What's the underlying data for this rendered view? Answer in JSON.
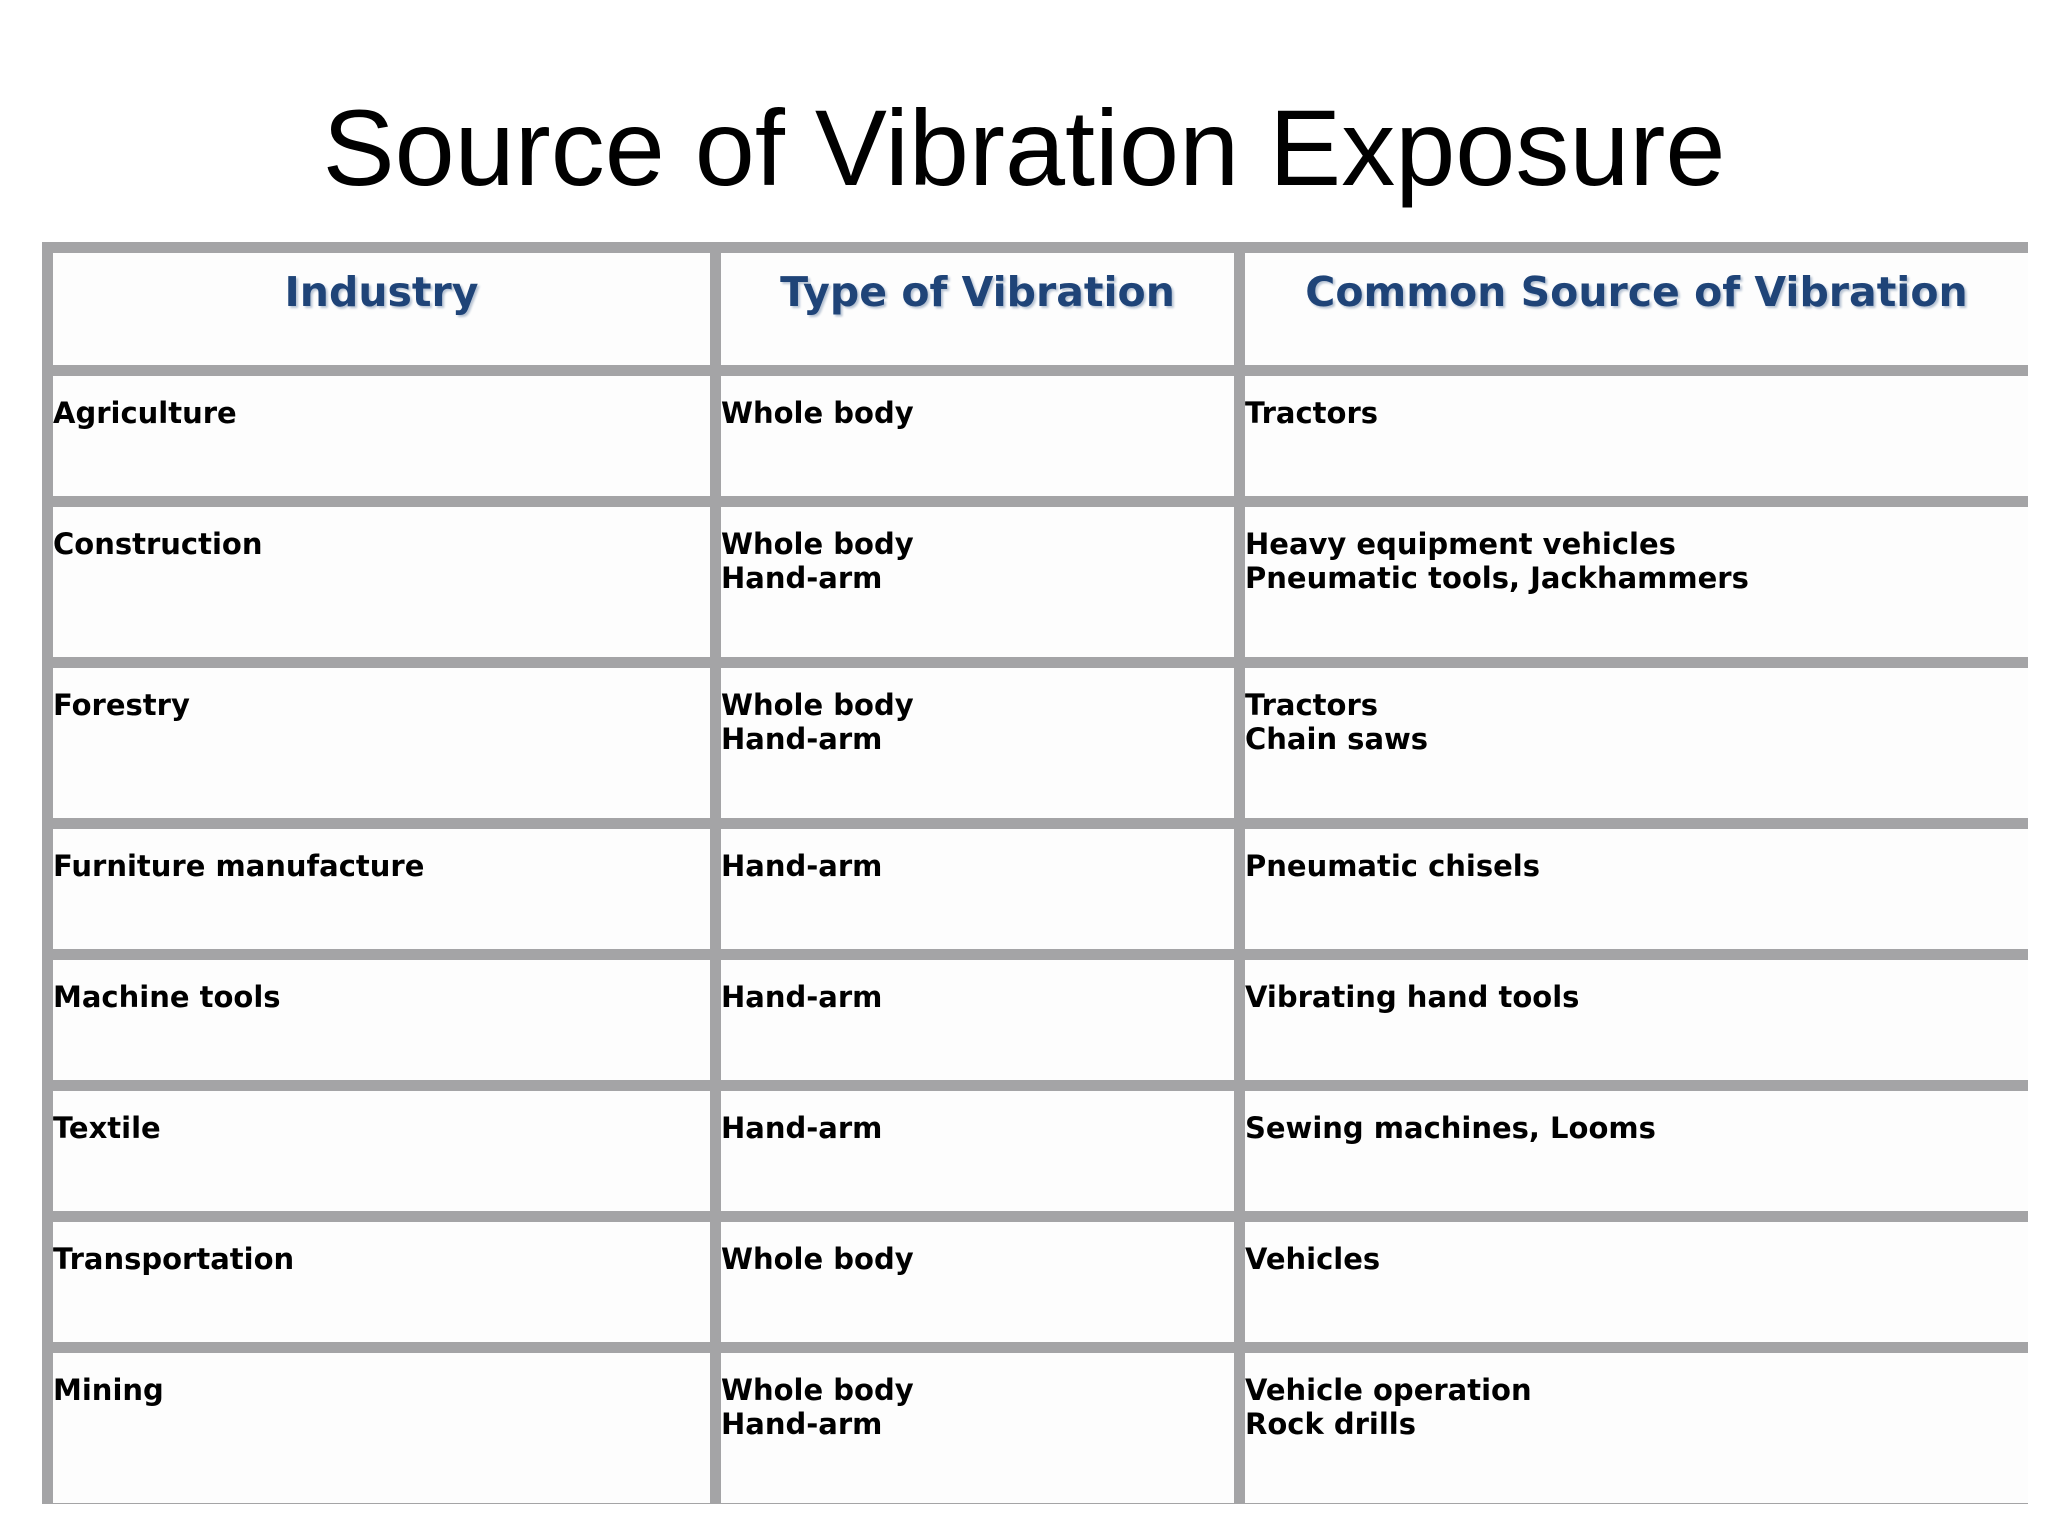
{
  "title": "Source of Vibration Exposure",
  "table": {
    "headers": [
      "Industry",
      "Type of Vibration",
      "Common Source of Vibration"
    ],
    "rows": [
      {
        "industry": "Agriculture",
        "type": [
          "Whole body"
        ],
        "source": [
          "Tractors"
        ]
      },
      {
        "industry": "Construction",
        "type": [
          "Whole body",
          "Hand-arm"
        ],
        "source": [
          "Heavy equipment vehicles",
          "Pneumatic tools, Jackhammers"
        ]
      },
      {
        "industry": "Forestry",
        "type": [
          "Whole body",
          "Hand-arm"
        ],
        "source": [
          "Tractors",
          "Chain saws"
        ]
      },
      {
        "industry": "Furniture manufacture",
        "type": [
          "Hand-arm"
        ],
        "source": [
          "Pneumatic chisels"
        ]
      },
      {
        "industry": "Machine tools",
        "type": [
          "Hand-arm"
        ],
        "source": [
          "Vibrating hand tools"
        ]
      },
      {
        "industry": "Textile",
        "type": [
          "Hand-arm"
        ],
        "source": [
          "Sewing machines, Looms"
        ]
      },
      {
        "industry": "Transportation",
        "type": [
          "Whole body"
        ],
        "source": [
          "Vehicles"
        ]
      },
      {
        "industry": "Mining",
        "type": [
          "Whole body",
          "Hand-arm"
        ],
        "source": [
          "Vehicle operation",
          "Rock drills"
        ]
      }
    ]
  },
  "colors": {
    "header_text": "#1f4478",
    "grid": "#a4a4a6",
    "cell_background": "#fdfdfd",
    "body_text": "#000000"
  }
}
